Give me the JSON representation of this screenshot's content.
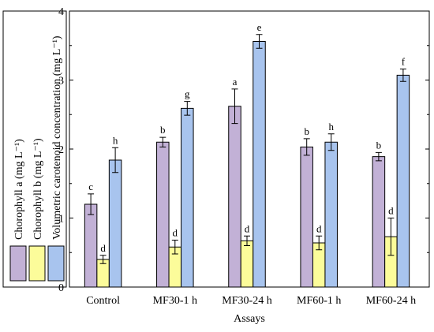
{
  "chart_data": {
    "type": "bar",
    "xlabel": "Assays",
    "categories": [
      "Control",
      "MF30-1 h",
      "MF30-24 h",
      "MF60-1 h",
      "MF60-24 h"
    ],
    "ylim": [
      0,
      4
    ],
    "yticks": [
      "0",
      "1",
      "2",
      "3",
      "4"
    ],
    "series": [
      {
        "name": "Chorophyll a (mg L⁻¹)",
        "color": "#c2b1d6",
        "values": [
          1.2,
          2.1,
          2.62,
          2.03,
          1.89
        ],
        "errors": [
          0.15,
          0.07,
          0.25,
          0.12,
          0.06
        ],
        "letters": [
          "c",
          "b",
          "a",
          "b",
          "b"
        ]
      },
      {
        "name": "Chorophyll b (mg L⁻¹)",
        "color": "#fcfc9a",
        "values": [
          0.4,
          0.58,
          0.67,
          0.64,
          0.73
        ],
        "errors": [
          0.06,
          0.1,
          0.07,
          0.1,
          0.27
        ],
        "letters": [
          "d",
          "d",
          "d",
          "d",
          "d"
        ]
      },
      {
        "name": "Volumetric carotenoid concentration (mg L⁻¹)",
        "color": "#a8c4ee",
        "values": [
          1.84,
          2.59,
          3.56,
          2.1,
          3.07
        ],
        "errors": [
          0.18,
          0.1,
          0.1,
          0.12,
          0.09
        ],
        "letters": [
          "h",
          "g",
          "e",
          "h",
          "f"
        ]
      }
    ],
    "grid": false,
    "legend": "left"
  }
}
